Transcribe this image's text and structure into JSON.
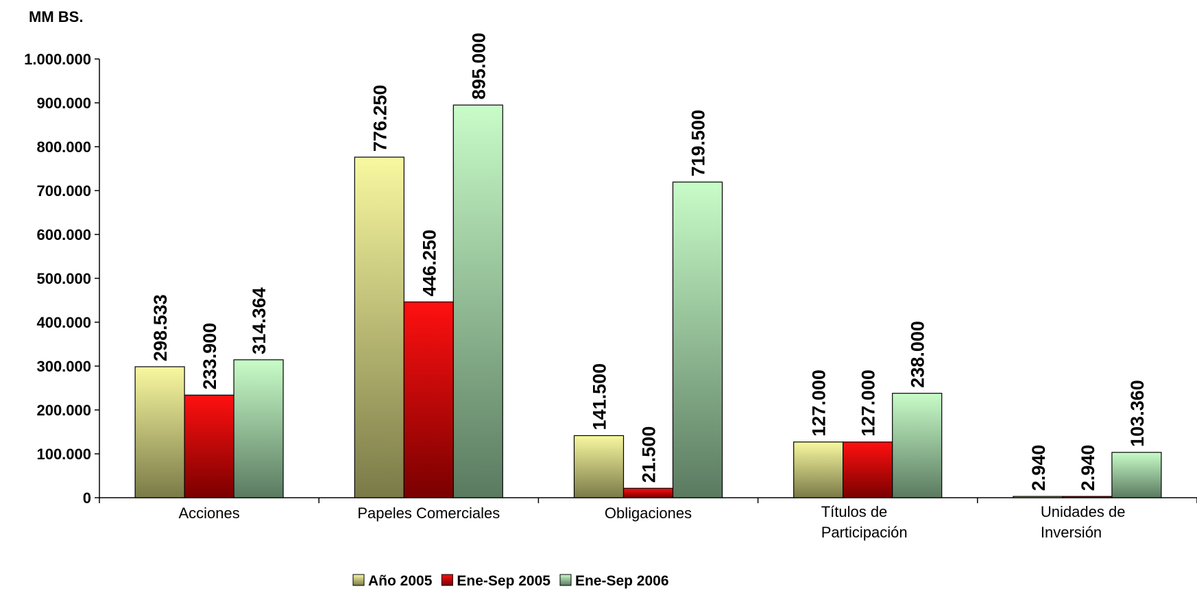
{
  "chart_data": {
    "type": "bar",
    "ylabel": "MM  BS.",
    "ylim": [
      0,
      1000000
    ],
    "yticks": [
      0,
      100000,
      200000,
      300000,
      400000,
      500000,
      600000,
      700000,
      800000,
      900000,
      1000000
    ],
    "ytick_labels": [
      "0",
      "100.000",
      "200.000",
      "300.000",
      "400.000",
      "500.000",
      "600.000",
      "700.000",
      "800.000",
      "900.000",
      "1.000.000"
    ],
    "categories": [
      [
        "Acciones"
      ],
      [
        "Papeles Comerciales"
      ],
      [
        "Obligaciones"
      ],
      [
        "Títulos de",
        "Participación"
      ],
      [
        "Unidades de",
        "Inversión"
      ]
    ],
    "series": [
      {
        "name": "Año 2005",
        "color_top": "#f8f8a0",
        "color_bottom": "#7a7a48",
        "values": [
          298533,
          776250,
          141500,
          127000,
          2940
        ],
        "labels": [
          "298.533",
          "776.250",
          "141.500",
          "127.000",
          "2.940"
        ]
      },
      {
        "name": "Ene-Sep 2005",
        "color_top": "#ff1010",
        "color_bottom": "#7a0000",
        "values": [
          233900,
          446250,
          21500,
          127000,
          2940
        ],
        "labels": [
          "233.900",
          "446.250",
          "21.500",
          "127.000",
          "2.940"
        ]
      },
      {
        "name": "Ene-Sep 2006",
        "color_top": "#c8fcc8",
        "color_bottom": "#5a7a60",
        "values": [
          314364,
          895000,
          719500,
          238000,
          103360
        ],
        "labels": [
          "314.364",
          "895.000",
          "719.500",
          "238.000",
          "103.360"
        ]
      }
    ],
    "legend_position": "bottom",
    "grid": false
  }
}
